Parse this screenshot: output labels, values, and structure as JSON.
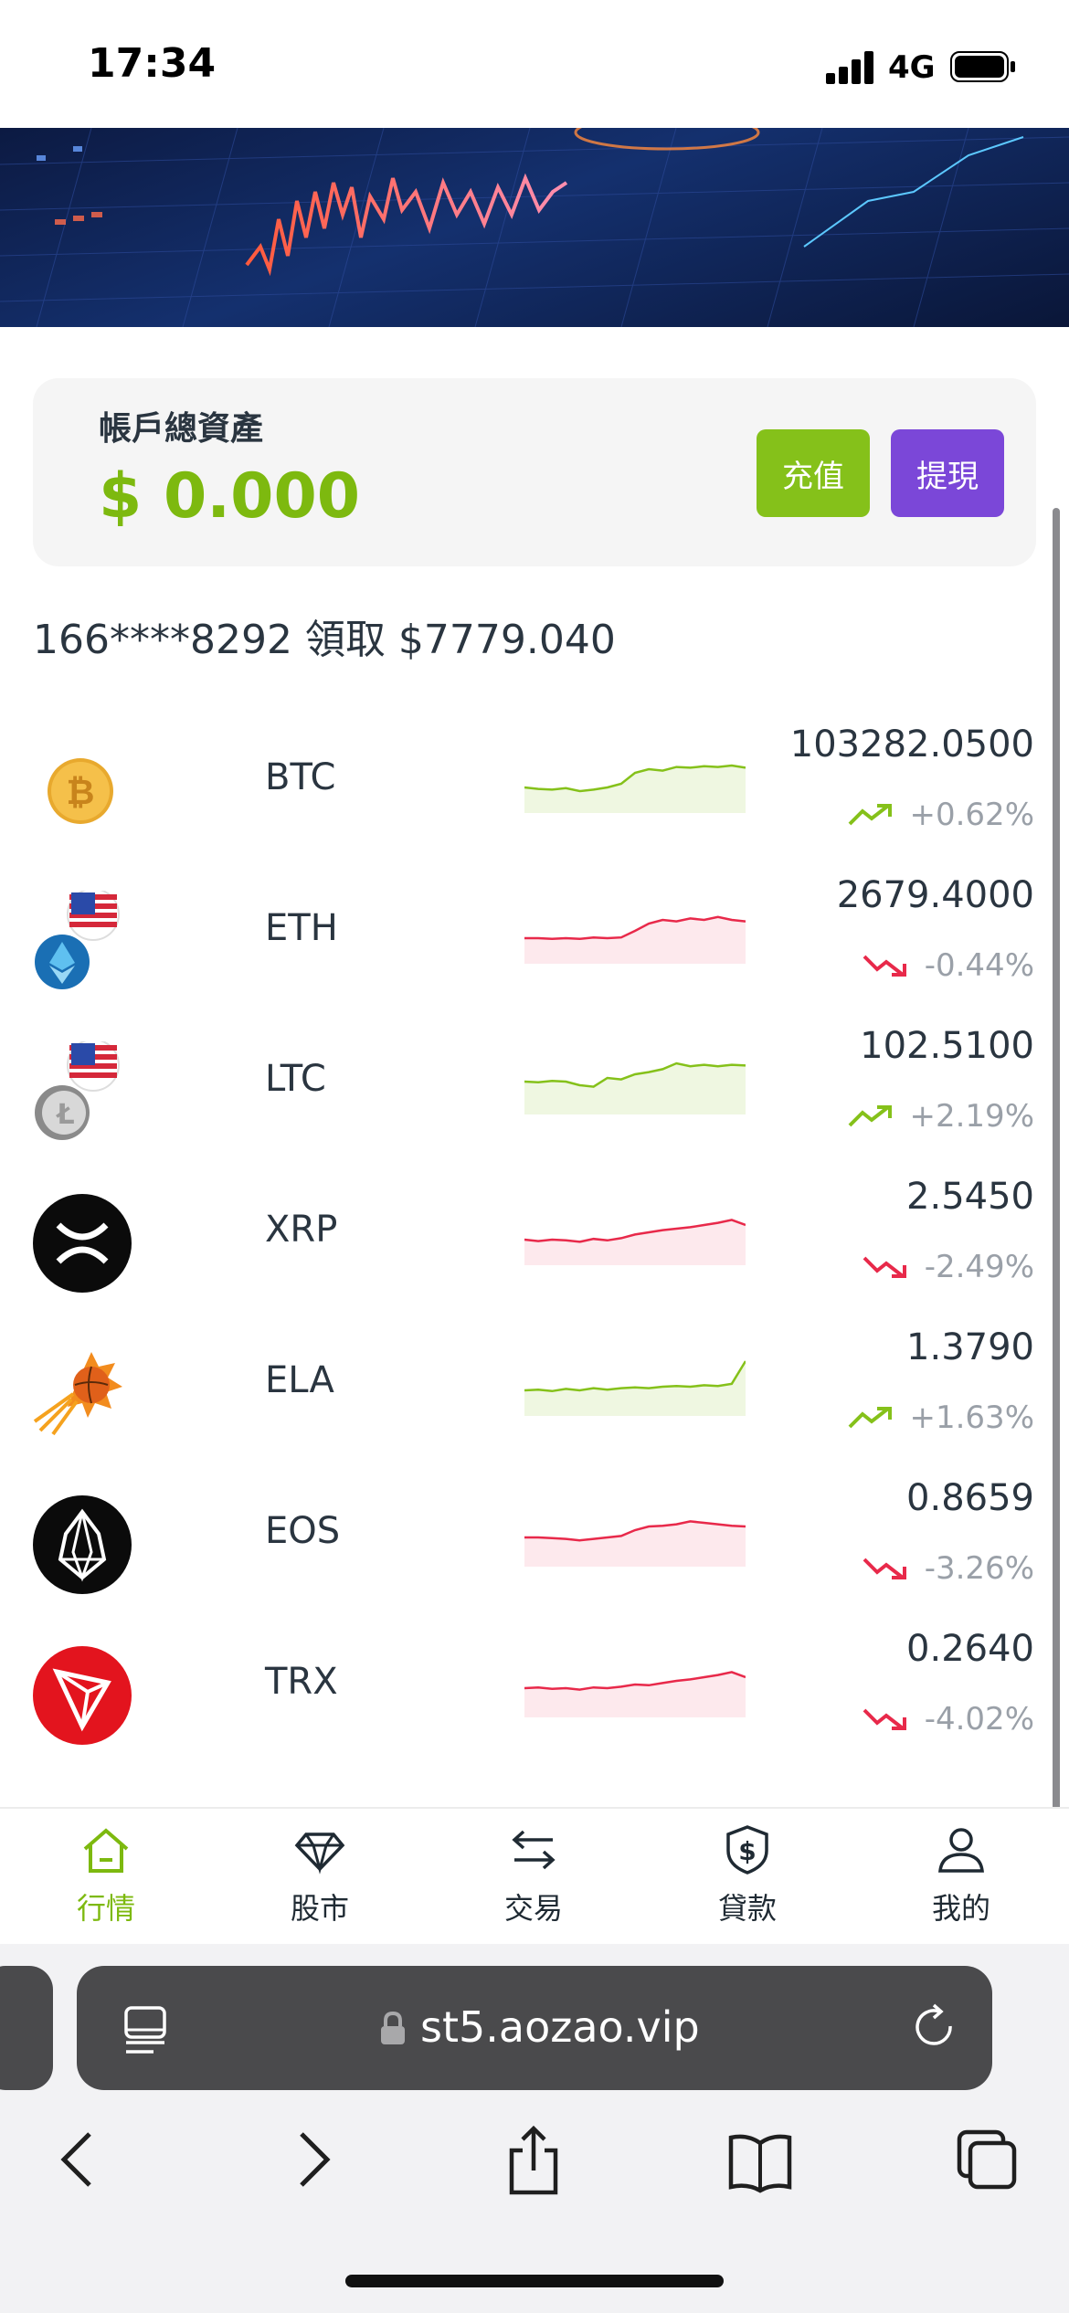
{
  "status_bar": {
    "time": "17:34",
    "network": "4G",
    "icons": [
      "signal-icon",
      "battery-icon"
    ]
  },
  "banner": {
    "slides": 3,
    "active_slide": 3
  },
  "account": {
    "label": "帳戶總資產",
    "balance": "$ 0.000",
    "deposit_label": "充值",
    "withdraw_label": "提現"
  },
  "notice": {
    "text": "166****8292 領取 $7779.040"
  },
  "colors": {
    "accent": "#7db90f",
    "up": "#85c11a",
    "down": "#e8294a",
    "withdraw": "#7b47d8"
  },
  "coins": [
    {
      "symbol": "BTC",
      "price": "103282.0500",
      "change": "+0.62%",
      "direction": "up",
      "icon": "bitcoin-icon",
      "spark": [
        0.35,
        0.33,
        0.32,
        0.34,
        0.3,
        0.32,
        0.35,
        0.4,
        0.55,
        0.6,
        0.58,
        0.63,
        0.62,
        0.64,
        0.63,
        0.65,
        0.62
      ]
    },
    {
      "symbol": "ETH",
      "price": "2679.4000",
      "change": "-0.44%",
      "direction": "down",
      "icon": "ethereum-icon",
      "spark": [
        0.35,
        0.35,
        0.34,
        0.35,
        0.34,
        0.36,
        0.35,
        0.36,
        0.45,
        0.55,
        0.6,
        0.58,
        0.62,
        0.6,
        0.64,
        0.6,
        0.58
      ]
    },
    {
      "symbol": "LTC",
      "price": "102.5100",
      "change": "+2.19%",
      "direction": "up",
      "icon": "litecoin-icon",
      "spark": [
        0.45,
        0.44,
        0.46,
        0.45,
        0.4,
        0.38,
        0.5,
        0.48,
        0.55,
        0.58,
        0.62,
        0.7,
        0.66,
        0.68,
        0.66,
        0.68,
        0.67
      ]
    },
    {
      "symbol": "XRP",
      "price": "2.5450",
      "change": "-2.49%",
      "direction": "down",
      "icon": "xrp-icon",
      "spark": [
        0.35,
        0.33,
        0.35,
        0.34,
        0.32,
        0.36,
        0.34,
        0.37,
        0.42,
        0.45,
        0.48,
        0.5,
        0.52,
        0.55,
        0.58,
        0.62,
        0.55
      ]
    },
    {
      "symbol": "ELA",
      "price": "1.3790",
      "change": "+1.63%",
      "direction": "up",
      "icon": "ela-icon",
      "spark": [
        0.35,
        0.36,
        0.34,
        0.37,
        0.35,
        0.38,
        0.36,
        0.38,
        0.39,
        0.38,
        0.4,
        0.41,
        0.4,
        0.42,
        0.41,
        0.44,
        0.75
      ]
    },
    {
      "symbol": "EOS",
      "price": "0.8659",
      "change": "-3.26%",
      "direction": "down",
      "icon": "eos-icon",
      "spark": [
        0.4,
        0.4,
        0.39,
        0.38,
        0.36,
        0.38,
        0.4,
        0.42,
        0.5,
        0.55,
        0.56,
        0.58,
        0.62,
        0.6,
        0.58,
        0.56,
        0.55
      ]
    },
    {
      "symbol": "TRX",
      "price": "0.2640",
      "change": "-4.02%",
      "direction": "down",
      "icon": "tron-icon",
      "spark": [
        0.4,
        0.41,
        0.39,
        0.4,
        0.38,
        0.41,
        0.4,
        0.42,
        0.45,
        0.44,
        0.47,
        0.5,
        0.52,
        0.55,
        0.58,
        0.62,
        0.55
      ]
    }
  ],
  "tabs": [
    {
      "label": "行情",
      "icon": "home-icon",
      "active": true
    },
    {
      "label": "股市",
      "icon": "diamond-icon",
      "active": false
    },
    {
      "label": "交易",
      "icon": "swap-icon",
      "active": false
    },
    {
      "label": "貸款",
      "icon": "shield-dollar-icon",
      "active": false
    },
    {
      "label": "我的",
      "icon": "user-icon",
      "active": false
    }
  ],
  "browser": {
    "url": "st5.aozao.vip"
  }
}
